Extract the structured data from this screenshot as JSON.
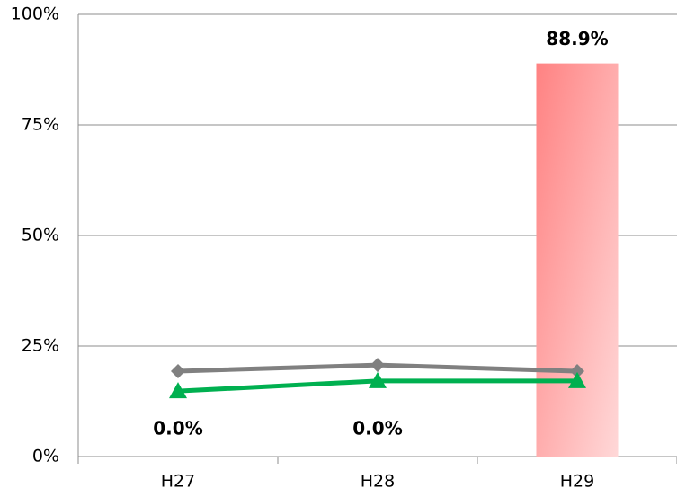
{
  "chart_data": {
    "type": "bar",
    "categories": [
      "H27",
      "H28",
      "H29"
    ],
    "series": [
      {
        "type": "bar",
        "color": [
          "#ff8282",
          "#ffd8d8"
        ],
        "values": [
          0,
          0,
          88.9
        ],
        "value_labels": [
          "0.0%",
          "0.0%",
          "88.9%"
        ]
      },
      {
        "type": "line",
        "marker": "diamond",
        "color": "#808080",
        "values": [
          19.3,
          20.7,
          19.3
        ]
      },
      {
        "type": "line",
        "marker": "triangle",
        "color": "#00b050",
        "values": [
          14.8,
          17.1,
          17.1
        ]
      }
    ],
    "ylim": [
      0,
      100
    ],
    "yticks": [
      {
        "value": 0,
        "label": "0%"
      },
      {
        "value": 25,
        "label": "25%"
      },
      {
        "value": 50,
        "label": "50%"
      },
      {
        "value": 75,
        "label": "75%"
      },
      {
        "value": 100,
        "label": "100%"
      }
    ],
    "grid": true
  }
}
